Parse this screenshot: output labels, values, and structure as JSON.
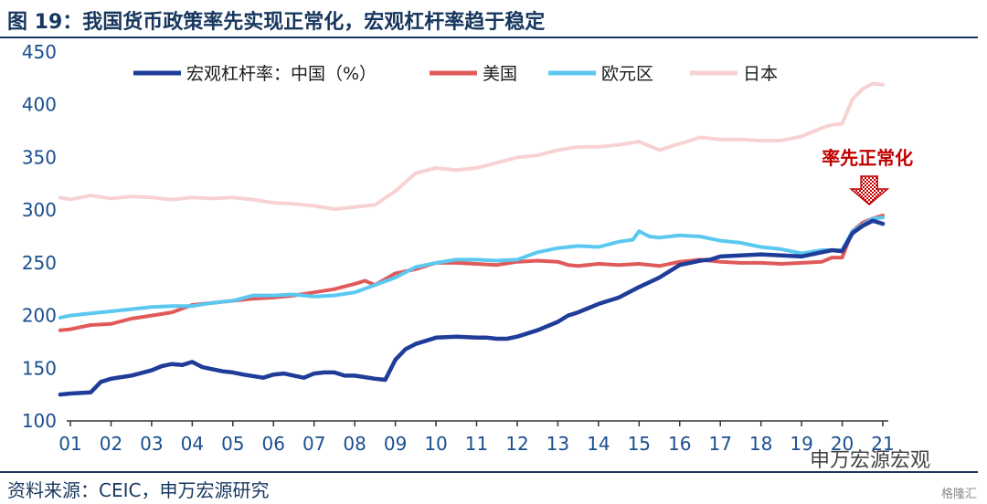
{
  "title": "图 19：我国货币政策率先实现正常化，宏观杠杆率趋于稳定",
  "source": "资料来源：CEIC，申万宏源研究",
  "watermark": {
    "wechat": "申万宏源宏观",
    "brand": "格隆汇"
  },
  "chart_data": {
    "type": "line",
    "title": "",
    "xlabel": "",
    "ylabel": "",
    "ylim": [
      100,
      450
    ],
    "yticks": [
      100,
      150,
      200,
      250,
      300,
      350,
      400,
      450
    ],
    "xticks": [
      "01",
      "02",
      "03",
      "04",
      "05",
      "06",
      "07",
      "08",
      "09",
      "10",
      "11",
      "12",
      "13",
      "14",
      "15",
      "16",
      "17",
      "18",
      "19",
      "20",
      "21"
    ],
    "xlim": [
      2001.0,
      2021.0
    ],
    "grid": false,
    "legend_position": "top",
    "annotation": {
      "text": "率先正常化",
      "color": "#c00000",
      "at_year": 2020.8
    },
    "series": [
      {
        "name": "宏观杠杆率：中国（%）",
        "color": "#1f3c99",
        "width": 4.5,
        "x": [
          2000.75,
          2001.0,
          2001.5,
          2001.75,
          2002.0,
          2002.5,
          2003.0,
          2003.25,
          2003.5,
          2003.75,
          2004.0,
          2004.25,
          2004.5,
          2004.75,
          2005.0,
          2005.25,
          2005.75,
          2006.0,
          2006.25,
          2006.5,
          2006.75,
          2007.0,
          2007.25,
          2007.5,
          2007.75,
          2008.0,
          2008.5,
          2008.75,
          2009.0,
          2009.25,
          2009.5,
          2009.75,
          2010.0,
          2010.5,
          2011.0,
          2011.25,
          2011.5,
          2011.75,
          2012.0,
          2012.5,
          2013.0,
          2013.25,
          2013.5,
          2013.75,
          2014.0,
          2014.5,
          2015.0,
          2015.5,
          2016.0,
          2016.25,
          2016.5,
          2016.75,
          2017.0,
          2017.5,
          2018.0,
          2018.5,
          2019.0,
          2019.5,
          2019.75,
          2020.0,
          2020.25,
          2020.5,
          2020.75,
          2021.0
        ],
        "values": [
          125,
          126,
          127,
          137,
          140,
          143,
          148,
          152,
          154,
          153,
          156,
          151,
          149,
          147,
          146,
          144,
          141,
          144,
          145,
          143,
          141,
          145,
          146,
          146,
          143,
          143,
          140,
          139,
          158,
          168,
          173,
          176,
          179,
          180,
          179,
          179,
          178,
          178,
          180,
          186,
          194,
          200,
          203,
          207,
          211,
          217,
          227,
          236,
          248,
          250,
          252,
          253,
          256,
          257,
          258,
          257,
          256,
          260,
          262,
          261,
          278,
          285,
          290,
          287
        ]
      },
      {
        "name": "美国",
        "color": "#e05a5a",
        "width": 4,
        "x": [
          2000.75,
          2001.0,
          2001.5,
          2002.0,
          2002.5,
          2003.0,
          2003.5,
          2004.0,
          2004.5,
          2005.0,
          2005.5,
          2006.0,
          2006.5,
          2007.0,
          2007.5,
          2008.0,
          2008.25,
          2008.5,
          2009.0,
          2009.5,
          2010.0,
          2010.5,
          2011.0,
          2011.5,
          2012.0,
          2012.5,
          2013.0,
          2013.25,
          2013.5,
          2014.0,
          2014.5,
          2015.0,
          2015.5,
          2016.0,
          2016.5,
          2017.0,
          2017.5,
          2018.0,
          2018.5,
          2019.0,
          2019.5,
          2019.75,
          2020.0,
          2020.25,
          2020.5,
          2020.75,
          2021.0
        ],
        "values": [
          186,
          187,
          191,
          192,
          197,
          200,
          203,
          210,
          212,
          214,
          216,
          217,
          219,
          222,
          225,
          230,
          233,
          229,
          240,
          244,
          250,
          250,
          249,
          248,
          251,
          252,
          251,
          248,
          247,
          249,
          248,
          249,
          247,
          251,
          253,
          251,
          250,
          250,
          249,
          250,
          251,
          255,
          255,
          280,
          288,
          292,
          295
        ]
      },
      {
        "name": "欧元区",
        "color": "#5bc8f0",
        "width": 4,
        "x": [
          2000.75,
          2001.0,
          2001.5,
          2002.0,
          2002.5,
          2003.0,
          2003.5,
          2004.0,
          2004.5,
          2005.0,
          2005.5,
          2006.0,
          2006.5,
          2007.0,
          2007.5,
          2008.0,
          2008.5,
          2009.0,
          2009.5,
          2010.0,
          2010.5,
          2011.0,
          2011.5,
          2012.0,
          2012.5,
          2013.0,
          2013.5,
          2014.0,
          2014.5,
          2014.85,
          2015.0,
          2015.25,
          2015.5,
          2016.0,
          2016.5,
          2017.0,
          2017.5,
          2018.0,
          2018.5,
          2019.0,
          2019.5,
          2019.75,
          2020.0,
          2020.25,
          2020.5,
          2020.75,
          2021.0
        ],
        "values": [
          198,
          200,
          202,
          204,
          206,
          208,
          209,
          209,
          212,
          214,
          219,
          219,
          220,
          218,
          219,
          222,
          229,
          236,
          246,
          250,
          253,
          253,
          252,
          253,
          260,
          264,
          266,
          265,
          270,
          272,
          280,
          275,
          274,
          276,
          275,
          271,
          269,
          265,
          263,
          259,
          262,
          262,
          262,
          280,
          286,
          292,
          293
        ]
      },
      {
        "name": "日本",
        "color": "#f8d2d2",
        "width": 4,
        "x": [
          2000.75,
          2001.0,
          2001.5,
          2002.0,
          2002.5,
          2003.0,
          2003.5,
          2004.0,
          2004.5,
          2005.0,
          2005.5,
          2006.0,
          2006.5,
          2007.0,
          2007.5,
          2008.0,
          2008.5,
          2009.0,
          2009.5,
          2010.0,
          2010.5,
          2011.0,
          2011.5,
          2012.0,
          2012.5,
          2013.0,
          2013.5,
          2014.0,
          2014.5,
          2015.0,
          2015.5,
          2016.0,
          2016.5,
          2017.0,
          2017.5,
          2018.0,
          2018.5,
          2019.0,
          2019.5,
          2019.75,
          2020.0,
          2020.25,
          2020.5,
          2020.75,
          2021.0
        ],
        "values": [
          312,
          310,
          314,
          311,
          313,
          312,
          310,
          312,
          311,
          312,
          310,
          307,
          306,
          304,
          301,
          303,
          305,
          318,
          335,
          340,
          338,
          340,
          345,
          350,
          352,
          357,
          360,
          360,
          362,
          365,
          357,
          363,
          369,
          367,
          367,
          366,
          366,
          370,
          378,
          381,
          382,
          405,
          415,
          420,
          419
        ]
      }
    ]
  }
}
